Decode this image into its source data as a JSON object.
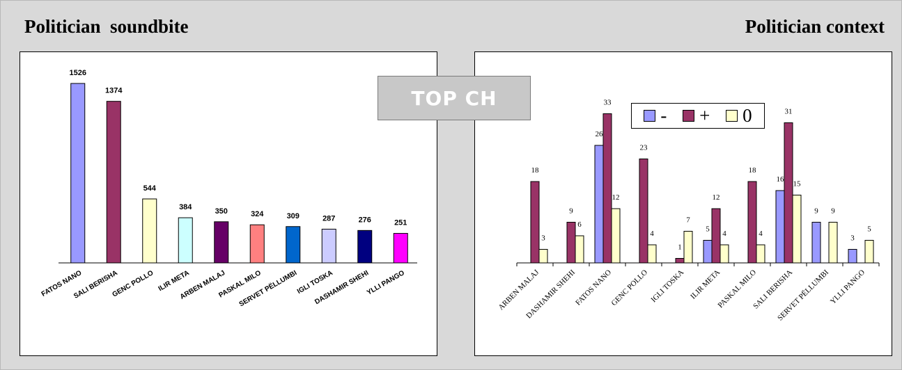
{
  "headings": {
    "left": "Politician  soundbite",
    "right": "Politician context"
  },
  "badge": {
    "label": "TOP CH"
  },
  "colors": {
    "minus": "#9999ff",
    "plus": "#993366",
    "zero": "#ffffcc"
  },
  "chart_data": [
    {
      "type": "bar",
      "categories": [
        "FATOS NANO",
        "SALI BERISHA",
        "GENC POLLO",
        "ILIR META",
        "ARBEN MALAJ",
        "PASKAL MILO",
        "SERVET PËLLUMBI",
        "IGLI TOSKA",
        "DASHAMIR SHEHI",
        "YLLI PANGO"
      ],
      "values": [
        1526,
        1374,
        544,
        384,
        350,
        324,
        309,
        287,
        276,
        251
      ],
      "colors": [
        "#9999ff",
        "#993366",
        "#ffffcc",
        "#ccffff",
        "#660066",
        "#ff8080",
        "#0066cc",
        "#ccccff",
        "#000080",
        "#ff00ff"
      ],
      "data_labels": true,
      "ylim": [
        0,
        1650
      ]
    },
    {
      "type": "bar",
      "categories": [
        "ARBEN MALAJ",
        "DASHAMIR SHEHI",
        "FATOS NANO",
        "GENC POLLO",
        "IGLI TOSKA",
        "ILIR META",
        "PASKAL MILO",
        "SALI BERISHA",
        "SERVET PËLLUMBI",
        "YLLI PANGO"
      ],
      "series": [
        {
          "name": "-",
          "values": [
            0,
            0,
            26,
            0,
            0,
            5,
            0,
            16,
            9,
            3
          ],
          "labels": [
            "",
            "",
            "26",
            "",
            "",
            "5",
            "",
            "16",
            "9",
            "3"
          ]
        },
        {
          "name": "+",
          "values": [
            18,
            9,
            33,
            23,
            1,
            12,
            18,
            31,
            0,
            0
          ],
          "labels": [
            "18",
            "9",
            "33",
            "23",
            "1",
            "12",
            "18",
            "31",
            "",
            ""
          ]
        },
        {
          "name": "0",
          "values": [
            3,
            6,
            12,
            4,
            7,
            4,
            4,
            15,
            9,
            5
          ],
          "labels": [
            "3",
            "6",
            "12",
            "4",
            "7",
            "4",
            "4",
            "15",
            "9",
            "5"
          ]
        }
      ],
      "legend_position": "top-right",
      "ylim": [
        0,
        36
      ]
    }
  ]
}
